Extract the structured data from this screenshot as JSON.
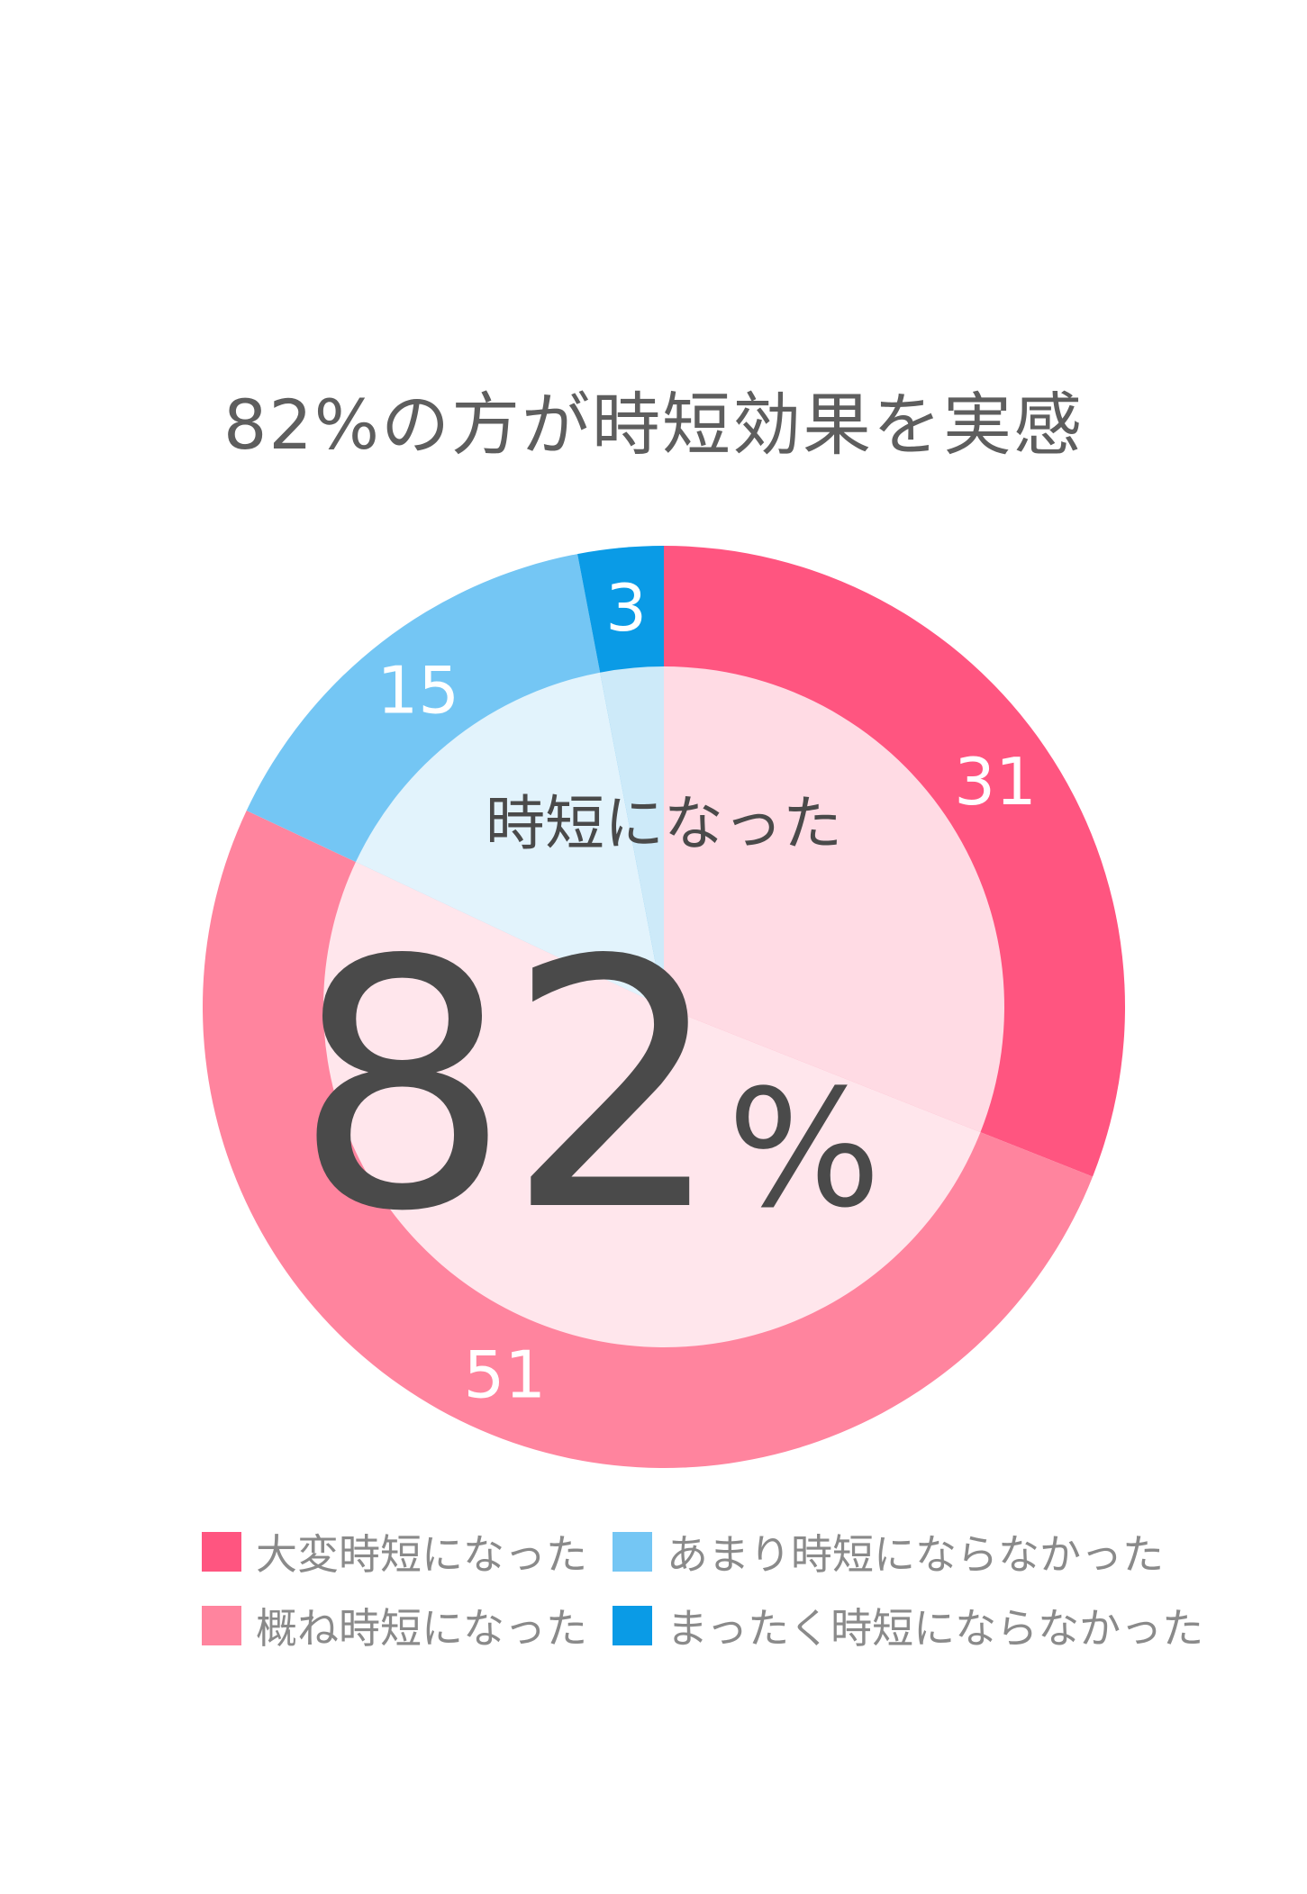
{
  "chart_data": {
    "type": "pie",
    "title": "82%の方が時短効果を実感",
    "categories": [
      "大変時短になった",
      "概ね時短になった",
      "あまり時短にならなかった",
      "まったく時短にならなかった"
    ],
    "values": [
      31,
      51,
      15,
      3
    ],
    "data_labels": [
      "31",
      "51",
      "15",
      "3"
    ],
    "colors": [
      "#ff5580",
      "#ff849e",
      "#74c6f4",
      "#0a9be6"
    ],
    "inner_colors": [
      "#ffdbe4",
      "#ffe6ec",
      "#e2f3fc",
      "#cdeaf9"
    ],
    "center_label": "時短になった",
    "center_value": "82",
    "center_unit": "%",
    "legend_position": "bottom"
  }
}
